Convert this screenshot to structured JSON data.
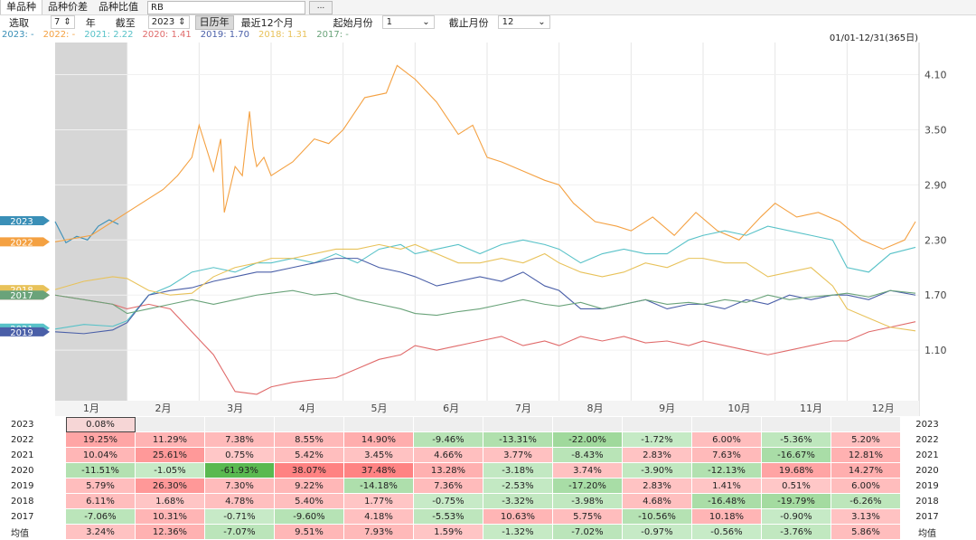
{
  "tabs": [
    "单品种",
    "品种价差",
    "品种比值"
  ],
  "symbol": "RB",
  "browse_button": "...",
  "controls": {
    "pick_label": "选取",
    "years_value": "7",
    "years_unit": "年",
    "until_label": "截至",
    "until_year": "2023",
    "calendar_btn": "日历年",
    "recent_btn": "最近12个月",
    "start_label": "起始月份",
    "start_month": "1",
    "end_label": "截止月份",
    "end_month": "12"
  },
  "legend": [
    {
      "text": "2023: -",
      "color": "#3a8fb7"
    },
    {
      "text": "2022: -",
      "color": "#f4a142"
    },
    {
      "text": "2021: 2.22",
      "color": "#58c2c8"
    },
    {
      "text": "2020: 1.41",
      "color": "#e06a6a"
    },
    {
      "text": "2019: 1.70",
      "color": "#4a5fa8"
    },
    {
      "text": "2018: 1.31",
      "color": "#e8c25a"
    },
    {
      "text": "2017: -",
      "color": "#6aa37a"
    }
  ],
  "date_range": "01/01-12/31(365日)",
  "chart_data": {
    "type": "line",
    "ylim": [
      0.55,
      4.45
    ],
    "y_ticks": [
      1.1,
      1.7,
      2.3,
      2.9,
      3.5,
      4.1
    ],
    "y_tick_labels": [
      "1.10",
      "1.70",
      "2.30",
      "2.90",
      "3.50",
      "4.10"
    ],
    "x_labels": [
      "1月",
      "2月",
      "3月",
      "4月",
      "5月",
      "6月",
      "7月",
      "8月",
      "9月",
      "10月",
      "11月",
      "12月"
    ],
    "shaded_range": [
      0,
      1
    ],
    "series": [
      {
        "name": "2023",
        "color": "#3a8fb7",
        "tag_value": 2.51,
        "x": [
          0,
          0.15,
          0.3,
          0.45,
          0.6,
          0.75,
          0.88
        ],
        "y": [
          2.5,
          2.27,
          2.34,
          2.3,
          2.45,
          2.52,
          2.47
        ]
      },
      {
        "name": "2022",
        "color": "#f4a142",
        "tag_value": 2.28,
        "x": [
          0,
          0.5,
          1,
          1.5,
          1.7,
          1.9,
          2.0,
          2.2,
          2.3,
          2.35,
          2.5,
          2.6,
          2.7,
          2.75,
          2.8,
          2.9,
          3.0,
          3.3,
          3.6,
          3.8,
          4.0,
          4.3,
          4.6,
          4.75,
          5.0,
          5.3,
          5.6,
          5.8,
          6.0,
          6.2,
          6.5,
          6.8,
          7.0,
          7.2,
          7.5,
          7.8,
          8.0,
          8.3,
          8.6,
          8.9,
          9.2,
          9.5,
          9.8,
          10.0,
          10.3,
          10.6,
          10.9,
          11.2,
          11.5,
          11.8,
          11.95
        ],
        "y": [
          2.28,
          2.35,
          2.6,
          2.85,
          3.0,
          3.2,
          3.55,
          3.05,
          3.4,
          2.6,
          3.1,
          3.0,
          3.7,
          3.3,
          3.1,
          3.2,
          3.0,
          3.15,
          3.4,
          3.35,
          3.5,
          3.85,
          3.9,
          4.2,
          4.05,
          3.8,
          3.45,
          3.55,
          3.2,
          3.15,
          3.05,
          2.95,
          2.9,
          2.7,
          2.5,
          2.45,
          2.4,
          2.55,
          2.35,
          2.6,
          2.4,
          2.3,
          2.55,
          2.7,
          2.55,
          2.6,
          2.5,
          2.3,
          2.2,
          2.3,
          2.5
        ]
      },
      {
        "name": "2021",
        "color": "#58c2c8",
        "tag_value": 1.34,
        "x": [
          0,
          0.4,
          0.8,
          1.0,
          1.3,
          1.6,
          1.9,
          2.2,
          2.5,
          2.8,
          3.0,
          3.3,
          3.6,
          3.9,
          4.2,
          4.5,
          4.8,
          5.0,
          5.3,
          5.6,
          5.9,
          6.2,
          6.5,
          6.8,
          7.0,
          7.3,
          7.6,
          7.9,
          8.2,
          8.5,
          8.8,
          9.0,
          9.3,
          9.6,
          9.9,
          10.2,
          10.5,
          10.8,
          11.0,
          11.3,
          11.6,
          11.95
        ],
        "y": [
          1.33,
          1.38,
          1.36,
          1.42,
          1.7,
          1.8,
          1.95,
          2.0,
          1.95,
          2.05,
          2.05,
          2.1,
          2.05,
          2.15,
          2.05,
          2.2,
          2.25,
          2.15,
          2.2,
          2.25,
          2.15,
          2.25,
          2.3,
          2.25,
          2.2,
          2.05,
          2.15,
          2.2,
          2.15,
          2.15,
          2.3,
          2.35,
          2.4,
          2.35,
          2.45,
          2.4,
          2.35,
          2.3,
          2.0,
          1.95,
          2.15,
          2.22
        ]
      },
      {
        "name": "2020",
        "color": "#e06a6a",
        "tag_value": 1.7,
        "x": [
          0,
          0.4,
          0.8,
          1.0,
          1.3,
          1.6,
          1.9,
          2.2,
          2.5,
          2.8,
          3.0,
          3.3,
          3.6,
          3.9,
          4.2,
          4.5,
          4.8,
          5.0,
          5.3,
          5.6,
          5.9,
          6.2,
          6.5,
          6.8,
          7.0,
          7.3,
          7.6,
          7.9,
          8.2,
          8.5,
          8.8,
          9.0,
          9.3,
          9.6,
          9.9,
          10.2,
          10.5,
          10.8,
          11.0,
          11.3,
          11.6,
          11.95
        ],
        "y": [
          1.7,
          1.65,
          1.6,
          1.55,
          1.6,
          1.55,
          1.3,
          1.05,
          0.65,
          0.62,
          0.7,
          0.75,
          0.78,
          0.8,
          0.9,
          1.0,
          1.05,
          1.15,
          1.1,
          1.15,
          1.2,
          1.25,
          1.15,
          1.2,
          1.15,
          1.25,
          1.2,
          1.25,
          1.18,
          1.2,
          1.15,
          1.2,
          1.15,
          1.1,
          1.05,
          1.1,
          1.15,
          1.2,
          1.2,
          1.3,
          1.35,
          1.41
        ]
      },
      {
        "name": "2019",
        "color": "#4a5fa8",
        "tag_value": 1.3,
        "x": [
          0,
          0.4,
          0.8,
          1.0,
          1.3,
          1.6,
          1.9,
          2.2,
          2.5,
          2.8,
          3.0,
          3.3,
          3.6,
          3.9,
          4.2,
          4.5,
          4.8,
          5.0,
          5.3,
          5.6,
          5.9,
          6.2,
          6.5,
          6.8,
          7.0,
          7.3,
          7.6,
          7.9,
          8.2,
          8.5,
          8.8,
          9.0,
          9.3,
          9.6,
          9.9,
          10.2,
          10.5,
          10.8,
          11.0,
          11.3,
          11.6,
          11.95
        ],
        "y": [
          1.3,
          1.28,
          1.32,
          1.4,
          1.7,
          1.75,
          1.78,
          1.85,
          1.9,
          1.95,
          1.95,
          2.0,
          2.05,
          2.1,
          2.1,
          2.0,
          1.95,
          1.9,
          1.8,
          1.85,
          1.9,
          1.85,
          1.95,
          1.8,
          1.75,
          1.55,
          1.55,
          1.6,
          1.65,
          1.55,
          1.6,
          1.6,
          1.55,
          1.65,
          1.6,
          1.7,
          1.65,
          1.7,
          1.7,
          1.65,
          1.75,
          1.7
        ]
      },
      {
        "name": "2018",
        "color": "#e8c25a",
        "tag_value": 1.76,
        "x": [
          0,
          0.4,
          0.8,
          1.0,
          1.3,
          1.6,
          1.9,
          2.2,
          2.5,
          2.8,
          3.0,
          3.3,
          3.6,
          3.9,
          4.2,
          4.5,
          4.8,
          5.0,
          5.3,
          5.6,
          5.9,
          6.2,
          6.5,
          6.8,
          7.0,
          7.3,
          7.6,
          7.9,
          8.2,
          8.5,
          8.8,
          9.0,
          9.3,
          9.6,
          9.9,
          10.2,
          10.5,
          10.8,
          11.0,
          11.3,
          11.6,
          11.95
        ],
        "y": [
          1.76,
          1.85,
          1.9,
          1.88,
          1.75,
          1.7,
          1.72,
          1.9,
          2.0,
          2.05,
          2.1,
          2.1,
          2.15,
          2.2,
          2.2,
          2.25,
          2.2,
          2.25,
          2.15,
          2.05,
          2.05,
          2.1,
          2.05,
          2.15,
          2.05,
          1.95,
          1.9,
          1.95,
          2.05,
          2.0,
          2.1,
          2.1,
          2.05,
          2.05,
          1.9,
          1.95,
          2.0,
          1.8,
          1.55,
          1.45,
          1.35,
          1.31
        ]
      },
      {
        "name": "2017",
        "color": "#6aa37a",
        "tag_value": 1.7,
        "x": [
          0,
          0.4,
          0.8,
          1.0,
          1.3,
          1.6,
          1.9,
          2.2,
          2.5,
          2.8,
          3.0,
          3.3,
          3.6,
          3.9,
          4.2,
          4.5,
          4.8,
          5.0,
          5.3,
          5.6,
          5.9,
          6.2,
          6.5,
          6.8,
          7.0,
          7.3,
          7.6,
          7.9,
          8.2,
          8.5,
          8.8,
          9.0,
          9.3,
          9.6,
          9.9,
          10.2,
          10.5,
          10.8,
          11.0,
          11.3,
          11.6,
          11.95
        ],
        "y": [
          1.7,
          1.65,
          1.6,
          1.5,
          1.55,
          1.6,
          1.65,
          1.6,
          1.65,
          1.7,
          1.72,
          1.75,
          1.7,
          1.72,
          1.65,
          1.6,
          1.55,
          1.5,
          1.48,
          1.52,
          1.55,
          1.6,
          1.65,
          1.6,
          1.58,
          1.62,
          1.55,
          1.6,
          1.65,
          1.6,
          1.62,
          1.6,
          1.65,
          1.62,
          1.7,
          1.65,
          1.68,
          1.7,
          1.72,
          1.68,
          1.75,
          1.72
        ]
      }
    ]
  },
  "table": {
    "rows": [
      {
        "year": "2023",
        "cells": [
          "0.08%",
          "",
          "",
          "",
          "",
          "",
          "",
          "",
          "",
          "",
          "",
          ""
        ]
      },
      {
        "year": "2022",
        "cells": [
          "19.25%",
          "11.29%",
          "7.38%",
          "8.55%",
          "14.90%",
          "-9.46%",
          "-13.31%",
          "-22.00%",
          "-1.72%",
          "6.00%",
          "-5.36%",
          "5.20%"
        ]
      },
      {
        "year": "2021",
        "cells": [
          "10.04%",
          "25.61%",
          "0.75%",
          "5.42%",
          "3.45%",
          "4.66%",
          "3.77%",
          "-8.43%",
          "2.83%",
          "7.63%",
          "-16.67%",
          "12.81%"
        ]
      },
      {
        "year": "2020",
        "cells": [
          "-11.51%",
          "-1.05%",
          "-61.93%",
          "38.07%",
          "37.48%",
          "13.28%",
          "-3.18%",
          "3.74%",
          "-3.90%",
          "-12.13%",
          "19.68%",
          "14.27%"
        ]
      },
      {
        "year": "2019",
        "cells": [
          "5.79%",
          "26.30%",
          "7.30%",
          "9.22%",
          "-14.18%",
          "7.36%",
          "-2.53%",
          "-17.20%",
          "2.83%",
          "1.41%",
          "0.51%",
          "6.00%"
        ]
      },
      {
        "year": "2018",
        "cells": [
          "6.11%",
          "1.68%",
          "4.78%",
          "5.40%",
          "1.77%",
          "-0.75%",
          "-3.32%",
          "-3.98%",
          "4.68%",
          "-16.48%",
          "-19.79%",
          "-6.26%"
        ]
      },
      {
        "year": "2017",
        "cells": [
          "-7.06%",
          "10.31%",
          "-0.71%",
          "-9.60%",
          "4.18%",
          "-5.53%",
          "10.63%",
          "5.75%",
          "-10.56%",
          "10.18%",
          "-0.90%",
          "3.13%"
        ]
      },
      {
        "year": "均值",
        "cells": [
          "3.24%",
          "12.36%",
          "-7.07%",
          "9.51%",
          "7.93%",
          "1.59%",
          "-1.32%",
          "-7.02%",
          "-0.97%",
          "-0.56%",
          "-3.76%",
          "5.86%"
        ]
      }
    ]
  }
}
